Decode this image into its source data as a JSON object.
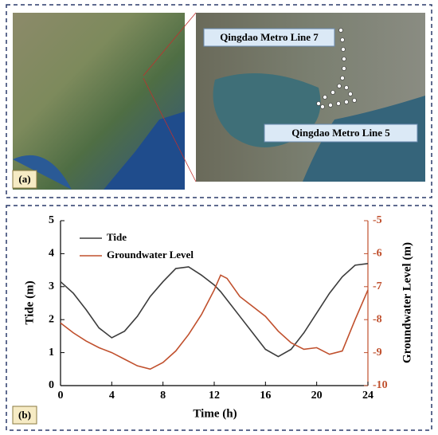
{
  "image_panel": {
    "label": "(a)",
    "annotations": [
      "Qingdao Metro Line 7",
      "Qingdao Metro Line 5"
    ]
  },
  "chart_data": {
    "type": "line",
    "panel_label": "(b)",
    "x_label": "Time (h)",
    "y_label": "Tide (m)",
    "y2_label": "Groundwater Level (m)",
    "x": [
      0,
      1,
      2,
      3,
      4,
      5,
      6,
      7,
      8,
      9,
      10,
      11,
      12,
      12.5,
      13,
      14,
      15,
      16,
      17,
      18,
      19,
      20,
      21,
      22,
      23,
      24
    ],
    "series": [
      {
        "name": "Tide",
        "color": "#3c3c3c",
        "values": [
          3.15,
          2.8,
          2.3,
          1.75,
          1.45,
          1.65,
          2.1,
          2.7,
          3.15,
          3.55,
          3.6,
          3.35,
          3.05,
          2.85,
          2.6,
          2.1,
          1.6,
          1.1,
          0.88,
          1.1,
          1.6,
          2.2,
          2.8,
          3.3,
          3.65,
          3.7
        ]
      },
      {
        "name": "Groundwater Level",
        "color": "#c0502d",
        "axis": "y2",
        "values": [
          -8.1,
          -8.4,
          -8.65,
          -8.85,
          -9.0,
          -9.2,
          -9.4,
          -9.5,
          -9.3,
          -8.95,
          -8.45,
          -7.85,
          -7.1,
          -6.65,
          -6.75,
          -7.3,
          -7.6,
          -7.9,
          -8.35,
          -8.7,
          -8.9,
          -8.85,
          -9.05,
          -8.95,
          -8.0,
          -7.1
        ]
      }
    ],
    "xlim": [
      0,
      24
    ],
    "xticks": [
      0,
      4,
      8,
      12,
      16,
      20,
      24
    ],
    "ylim": [
      0,
      5
    ],
    "yticks": [
      0,
      1,
      2,
      3,
      4,
      5
    ],
    "y2lim": [
      -10,
      -5
    ],
    "y2ticks": [
      -10,
      -9,
      -8,
      -7,
      -6,
      -5
    ],
    "y2_color": "#c0502d"
  }
}
